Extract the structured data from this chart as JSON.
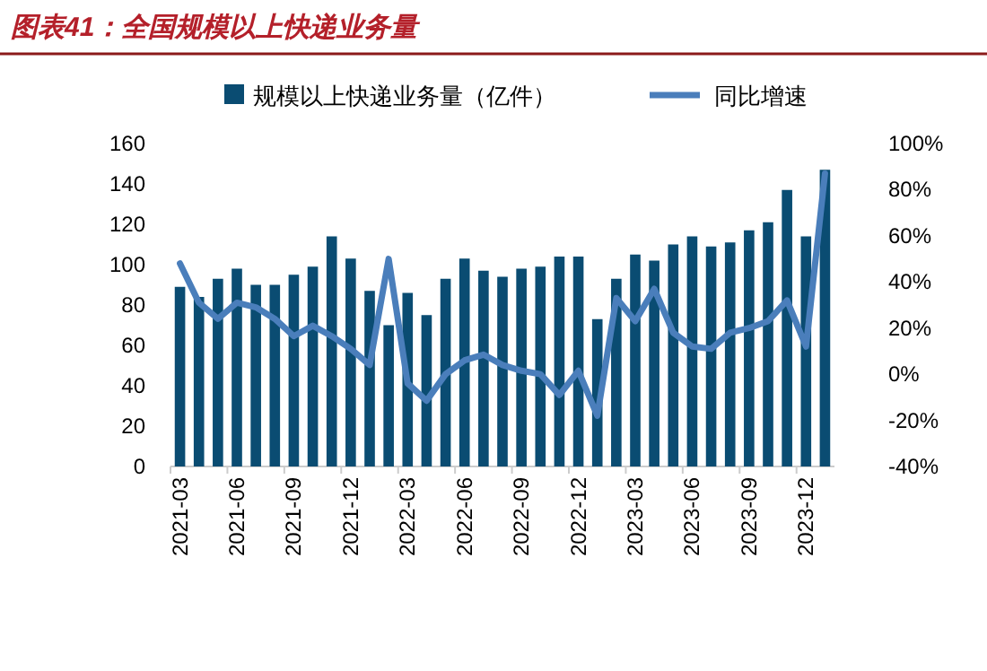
{
  "chart_data": {
    "type": "bar",
    "title": "图表41：全国规模以上快递业务量",
    "categories": [
      "2021-03",
      null,
      null,
      "2021-06",
      null,
      null,
      "2021-09",
      null,
      null,
      "2021-12",
      null,
      null,
      "2022-03",
      null,
      null,
      "2022-06",
      null,
      null,
      "2022-09",
      null,
      null,
      "2022-12",
      null,
      null,
      "2023-03",
      null,
      null,
      "2023-06",
      null,
      null,
      "2023-09",
      null,
      null,
      "2023-12",
      null
    ],
    "series": [
      {
        "name": "规模以上快递业务量（亿件）",
        "color": "#0a4c72",
        "values": [
          89,
          84,
          93,
          98,
          90,
          90,
          95,
          99,
          114,
          103,
          87,
          70,
          86,
          75,
          93,
          103,
          97,
          94,
          98,
          99,
          104,
          104,
          73,
          93,
          105,
          102,
          110,
          114,
          109,
          111,
          117,
          121,
          137,
          114,
          147
        ]
      },
      {
        "name": "同比增速",
        "type": "line",
        "axis": "y2",
        "color": "#4a7ebb",
        "values": [
          48,
          31,
          24,
          31,
          29,
          24,
          16.5,
          21,
          16.5,
          11,
          4,
          50,
          -4,
          -11.5,
          0,
          6,
          8.5,
          4,
          1.5,
          0,
          -9,
          1.5,
          -18,
          33,
          23,
          37,
          18,
          12,
          11,
          18,
          20,
          23,
          32,
          12,
          87
        ]
      }
    ],
    "ylim": [
      0,
      160
    ],
    "yticks": [
      0,
      20,
      40,
      60,
      80,
      100,
      120,
      140,
      160
    ],
    "y2lim": [
      -40,
      100
    ],
    "y2ticks": [
      {
        "value": -40,
        "label": "-40%"
      },
      {
        "value": -20,
        "label": "-20%"
      },
      {
        "value": 0,
        "label": "0%"
      },
      {
        "value": 20,
        "label": "20%"
      },
      {
        "value": 40,
        "label": "40%"
      },
      {
        "value": 60,
        "label": "60%"
      },
      {
        "value": 80,
        "label": "80%"
      },
      {
        "value": 100,
        "label": "100%"
      }
    ],
    "legend": "top",
    "grid": false
  }
}
